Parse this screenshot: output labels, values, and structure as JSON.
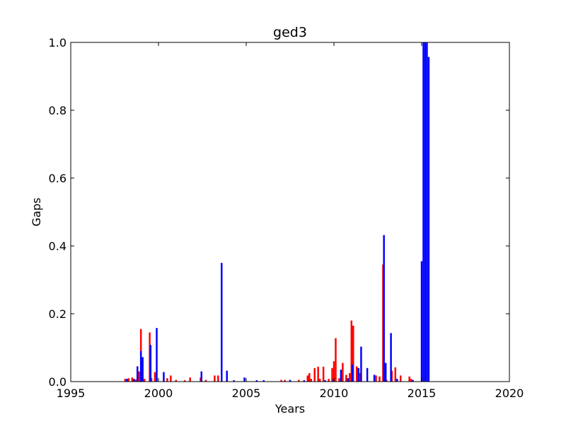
{
  "chart_data": {
    "type": "bar",
    "title": "ged3",
    "xlabel": "Years",
    "ylabel": "Gaps",
    "xlim": [
      1995,
      2020
    ],
    "ylim": [
      0.0,
      1.0
    ],
    "x_ticks": [
      "1995",
      "2000",
      "2005",
      "2010",
      "2015",
      "2020"
    ],
    "y_ticks": [
      "0.0",
      "0.2",
      "0.4",
      "0.6",
      "0.8",
      "1.0"
    ],
    "grid": false,
    "legend": "none",
    "series": [
      {
        "color": "#ff0000",
        "x": [
          1998.1,
          1998.3,
          1998.5,
          1998.7,
          1998.9,
          1999.0,
          1999.2,
          1999.5,
          1999.6,
          1999.8,
          2000.5,
          2000.7,
          2001.0,
          2001.5,
          2001.8,
          2002.4,
          2002.7,
          2003.2,
          2003.4,
          2007.0,
          2007.2,
          2008.0,
          2008.5,
          2008.6,
          2008.7,
          2008.9,
          2009.1,
          2009.2,
          2009.4,
          2009.7,
          2009.9,
          2010.0,
          2010.1,
          2010.3,
          2010.5,
          2010.7,
          2010.9,
          2011.0,
          2011.1,
          2011.3,
          2011.5,
          2012.4,
          2012.6,
          2012.8,
          2013.0,
          2013.3,
          2013.5,
          2013.8,
          2014.3,
          2014.4
        ],
        "values": [
          0.008,
          0.01,
          0.012,
          0.006,
          0.03,
          0.155,
          0.008,
          0.145,
          0.01,
          0.028,
          0.01,
          0.018,
          0.005,
          0.004,
          0.012,
          0.012,
          0.005,
          0.018,
          0.018,
          0.005,
          0.005,
          0.005,
          0.018,
          0.025,
          0.008,
          0.04,
          0.044,
          0.008,
          0.044,
          0.008,
          0.04,
          0.06,
          0.128,
          0.01,
          0.055,
          0.02,
          0.025,
          0.18,
          0.165,
          0.045,
          0.025,
          0.018,
          0.015,
          0.345,
          0.005,
          0.032,
          0.042,
          0.018,
          0.015,
          0.008
        ]
      },
      {
        "color": "#0000ff",
        "x": [
          1998.2,
          1998.6,
          1998.8,
          1999.0,
          1999.1,
          1999.55,
          1999.9,
          2000.3,
          2002.45,
          2003.6,
          2003.9,
          2004.3,
          2004.9,
          2005.6,
          2006.0,
          2007.5,
          2008.3,
          2009.5,
          2009.95,
          2010.4,
          2010.8,
          2011.05,
          2011.4,
          2011.55,
          2011.9,
          2012.3,
          2012.85,
          2012.95,
          2013.25,
          2013.6,
          2014.5,
          2015.0,
          2015.1,
          2015.2,
          2015.3,
          2015.4
        ],
        "values": [
          0.008,
          0.008,
          0.045,
          0.09,
          0.072,
          0.108,
          0.158,
          0.028,
          0.03,
          0.35,
          0.032,
          0.004,
          0.012,
          0.004,
          0.004,
          0.005,
          0.004,
          0.004,
          0.005,
          0.035,
          0.01,
          0.05,
          0.04,
          0.103,
          0.04,
          0.02,
          0.432,
          0.055,
          0.143,
          0.008,
          0.005,
          0.355,
          1.0,
          1.0,
          1.0,
          0.957
        ]
      }
    ]
  }
}
